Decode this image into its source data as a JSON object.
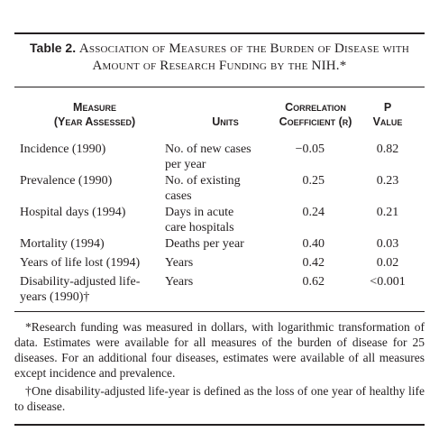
{
  "caption": {
    "label": "Table 2.",
    "title": "Association of Measures of the Burden of Disease with Amount of Research Funding by the NIH.*"
  },
  "columns": {
    "measure": [
      "Measure",
      "(Year Assessed)"
    ],
    "units": [
      "Units"
    ],
    "correlation": [
      "Correlation",
      "Coefficient (r)"
    ],
    "pvalue": [
      "P",
      "Value"
    ]
  },
  "rows": [
    {
      "measure": [
        "Incidence (1990)"
      ],
      "units": [
        "No. of new cases",
        "per year"
      ],
      "r": "−0.05",
      "p": "0.82"
    },
    {
      "measure": [
        "Prevalence (1990)"
      ],
      "units": [
        "No. of existing",
        "cases"
      ],
      "r": "0.25",
      "p": "0.23"
    },
    {
      "measure": [
        "Hospital days (1994)"
      ],
      "units": [
        "Days in acute",
        "care hospitals"
      ],
      "r": "0.24",
      "p": "0.21"
    },
    {
      "measure": [
        "Mortality (1994)"
      ],
      "units": [
        "Deaths per year"
      ],
      "r": "0.40",
      "p": "0.03"
    },
    {
      "measure": [
        "Years of life lost (1994)"
      ],
      "units": [
        "Years"
      ],
      "r": "0.42",
      "p": "0.02"
    },
    {
      "measure": [
        "Disability-adjusted life-",
        "years (1990)†"
      ],
      "units": [
        "Years"
      ],
      "r": "0.62",
      "p": "<0.001"
    }
  ],
  "footnotes": [
    "*Research funding was measured in dollars, with logarithmic transformation of data. Estimates were available for all measures of the burden of disease for 25 diseases. For an additional four diseases, estimates were available of all measures except incidence and prevalence.",
    "†One disability-adjusted life-year is defined as the loss of one year of healthy life to disease."
  ]
}
